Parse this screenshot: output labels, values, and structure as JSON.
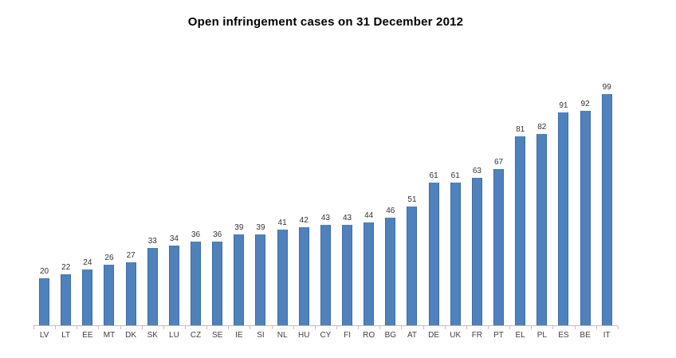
{
  "chart_data": {
    "type": "bar",
    "title": "Open infringement cases on 31 December 2012",
    "categories": [
      "LV",
      "LT",
      "EE",
      "MT",
      "DK",
      "SK",
      "LU",
      "CZ",
      "SE",
      "IE",
      "SI",
      "NL",
      "HU",
      "CY",
      "FI",
      "RO",
      "BG",
      "AT",
      "DE",
      "UK",
      "FR",
      "PT",
      "EL",
      "PL",
      "ES",
      "BE",
      "IT"
    ],
    "values": [
      20,
      22,
      24,
      26,
      27,
      33,
      34,
      36,
      36,
      39,
      39,
      41,
      42,
      43,
      43,
      44,
      46,
      51,
      61,
      61,
      63,
      67,
      81,
      82,
      91,
      92,
      99
    ],
    "xlabel": "",
    "ylabel": "",
    "ylim": [
      0,
      105
    ],
    "grid": false,
    "legend": false,
    "data_labels": true,
    "bar_color": "#4F81BD",
    "bar_edge_color": "#3F6CA3",
    "axis_color": "#BFBFBF",
    "value_label_color": "#333333",
    "category_label_color": "#404040",
    "title_color": "#000000",
    "background_color": "#FFFFFF"
  }
}
